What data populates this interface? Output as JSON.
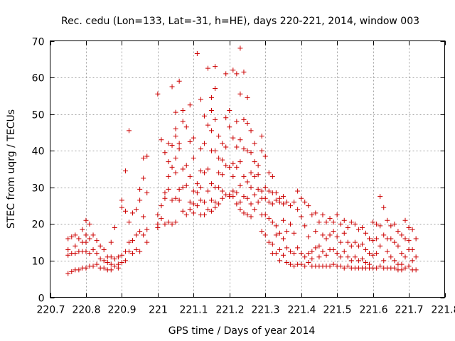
{
  "chart_data": {
    "type": "scatter",
    "title": "Rec. cedu (Lon=133, Lat=-31, h=HE), days 220-221, 2014, window 003",
    "xlabel": "GPS time / Days of year 2014",
    "ylabel": "STEC from uqrg / TECUs",
    "xlim": [
      220.7,
      221.8
    ],
    "ylim": [
      0,
      70
    ],
    "xticks": [
      220.7,
      220.8,
      220.9,
      221.0,
      221.1,
      221.2,
      221.3,
      221.4,
      221.5,
      221.6,
      221.7,
      221.8
    ],
    "xtick_labels": [
      "220.7",
      "220.8",
      "220.9",
      "221",
      "221.1",
      "221.2",
      "221.3",
      "221.4",
      "221.5",
      "221.6",
      "221.7",
      "221.8"
    ],
    "yticks": [
      0,
      10,
      20,
      30,
      40,
      50,
      60,
      70
    ],
    "ytick_labels": [
      "0",
      "10",
      "20",
      "30",
      "40",
      "50",
      "60",
      "70"
    ],
    "grid": true,
    "marker": "+",
    "color": "#cc0000",
    "points": [
      [
        220.75,
        16
      ],
      [
        220.75,
        13
      ],
      [
        220.75,
        11.5
      ],
      [
        220.75,
        6.5
      ],
      [
        220.76,
        16.5
      ],
      [
        220.76,
        12
      ],
      [
        220.76,
        7
      ],
      [
        220.77,
        17
      ],
      [
        220.77,
        14
      ],
      [
        220.77,
        12
      ],
      [
        220.77,
        7.5
      ],
      [
        220.78,
        16
      ],
      [
        220.78,
        12.5
      ],
      [
        220.78,
        7.5
      ],
      [
        220.79,
        18.5
      ],
      [
        220.79,
        15
      ],
      [
        220.79,
        12.5
      ],
      [
        220.79,
        8
      ],
      [
        220.8,
        21
      ],
      [
        220.8,
        17
      ],
      [
        220.8,
        15
      ],
      [
        220.8,
        12.5
      ],
      [
        220.8,
        8
      ],
      [
        220.81,
        20
      ],
      [
        220.81,
        16
      ],
      [
        220.81,
        12
      ],
      [
        220.81,
        8.5
      ],
      [
        220.82,
        17
      ],
      [
        220.82,
        13
      ],
      [
        220.82,
        8.5
      ],
      [
        220.83,
        15.5
      ],
      [
        220.83,
        12
      ],
      [
        220.83,
        9
      ],
      [
        220.84,
        14
      ],
      [
        220.84,
        10.5
      ],
      [
        220.84,
        8
      ],
      [
        220.85,
        13
      ],
      [
        220.85,
        10
      ],
      [
        220.85,
        8
      ],
      [
        220.86,
        11
      ],
      [
        220.86,
        9.5
      ],
      [
        220.86,
        7.5
      ],
      [
        220.87,
        15
      ],
      [
        220.87,
        11
      ],
      [
        220.87,
        9
      ],
      [
        220.87,
        7.5
      ],
      [
        220.88,
        19
      ],
      [
        220.88,
        10.5
      ],
      [
        220.88,
        8.5
      ],
      [
        220.89,
        11
      ],
      [
        220.89,
        9
      ],
      [
        220.89,
        8
      ],
      [
        220.9,
        24.5
      ],
      [
        220.9,
        26.5
      ],
      [
        220.9,
        11.5
      ],
      [
        220.9,
        9.5
      ],
      [
        220.91,
        34.5
      ],
      [
        220.91,
        23.5
      ],
      [
        220.91,
        12.5
      ],
      [
        220.91,
        10
      ],
      [
        220.92,
        45.5
      ],
      [
        220.92,
        20.5
      ],
      [
        220.92,
        15
      ],
      [
        220.92,
        12.5
      ],
      [
        220.93,
        23
      ],
      [
        220.93,
        15.5
      ],
      [
        220.93,
        12
      ],
      [
        220.94,
        24
      ],
      [
        220.94,
        17
      ],
      [
        220.94,
        13
      ],
      [
        220.95,
        29.5
      ],
      [
        220.95,
        26.5
      ],
      [
        220.95,
        18
      ],
      [
        220.95,
        12.5
      ],
      [
        220.96,
        38
      ],
      [
        220.96,
        32.5
      ],
      [
        220.96,
        22
      ],
      [
        220.96,
        17
      ],
      [
        220.97,
        38.5
      ],
      [
        220.97,
        28.5
      ],
      [
        220.97,
        18.5
      ],
      [
        220.97,
        15
      ],
      [
        221.0,
        55.5
      ],
      [
        221.0,
        22.5
      ],
      [
        221.0,
        20
      ],
      [
        221.0,
        19
      ],
      [
        221.01,
        43
      ],
      [
        221.01,
        25
      ],
      [
        221.01,
        21.5
      ],
      [
        221.02,
        39.5
      ],
      [
        221.02,
        28.5
      ],
      [
        221.02,
        27
      ],
      [
        221.02,
        20
      ],
      [
        221.03,
        42
      ],
      [
        221.03,
        37
      ],
      [
        221.03,
        33
      ],
      [
        221.03,
        29.5
      ],
      [
        221.03,
        20.5
      ],
      [
        221.04,
        57.5
      ],
      [
        221.04,
        41.5
      ],
      [
        221.04,
        35.5
      ],
      [
        221.04,
        26.5
      ],
      [
        221.04,
        20
      ],
      [
        221.05,
        50.5
      ],
      [
        221.05,
        46
      ],
      [
        221.05,
        44
      ],
      [
        221.05,
        38
      ],
      [
        221.05,
        34
      ],
      [
        221.05,
        27
      ],
      [
        221.05,
        20.5
      ],
      [
        221.06,
        59
      ],
      [
        221.06,
        42
      ],
      [
        221.06,
        40.5
      ],
      [
        221.06,
        29.5
      ],
      [
        221.06,
        26.5
      ],
      [
        221.07,
        51
      ],
      [
        221.07,
        48
      ],
      [
        221.07,
        35
      ],
      [
        221.07,
        30
      ],
      [
        221.07,
        23.5
      ],
      [
        221.08,
        46.5
      ],
      [
        221.08,
        36
      ],
      [
        221.08,
        30.5
      ],
      [
        221.08,
        22.5
      ],
      [
        221.09,
        52.5
      ],
      [
        221.09,
        42.5
      ],
      [
        221.09,
        33
      ],
      [
        221.09,
        26
      ],
      [
        221.09,
        24
      ],
      [
        221.1,
        43.5
      ],
      [
        221.1,
        38
      ],
      [
        221.1,
        29
      ],
      [
        221.1,
        25.5
      ],
      [
        221.1,
        23
      ],
      [
        221.11,
        66.5
      ],
      [
        221.11,
        31
      ],
      [
        221.11,
        28.5
      ],
      [
        221.11,
        25
      ],
      [
        221.12,
        54
      ],
      [
        221.12,
        40.5
      ],
      [
        221.12,
        34.5
      ],
      [
        221.12,
        30
      ],
      [
        221.12,
        26.5
      ],
      [
        221.12,
        22.5
      ],
      [
        221.13,
        49.5
      ],
      [
        221.13,
        42
      ],
      [
        221.13,
        34
      ],
      [
        221.13,
        26
      ],
      [
        221.13,
        22.5
      ],
      [
        221.14,
        62.5
      ],
      [
        221.14,
        47
      ],
      [
        221.14,
        35
      ],
      [
        221.14,
        29
      ],
      [
        221.14,
        24
      ],
      [
        221.15,
        54.5
      ],
      [
        221.15,
        51
      ],
      [
        221.15,
        45.5
      ],
      [
        221.15,
        40
      ],
      [
        221.15,
        31
      ],
      [
        221.15,
        26.5
      ],
      [
        221.15,
        23.5
      ],
      [
        221.16,
        63
      ],
      [
        221.16,
        57
      ],
      [
        221.16,
        48.5
      ],
      [
        221.16,
        40
      ],
      [
        221.16,
        30
      ],
      [
        221.16,
        26
      ],
      [
        221.16,
        24.5
      ],
      [
        221.17,
        44
      ],
      [
        221.17,
        38
      ],
      [
        221.17,
        34
      ],
      [
        221.17,
        30
      ],
      [
        221.17,
        25.5
      ],
      [
        221.18,
        42
      ],
      [
        221.18,
        37.5
      ],
      [
        221.18,
        33.5
      ],
      [
        221.18,
        29
      ],
      [
        221.18,
        27
      ],
      [
        221.19,
        61
      ],
      [
        221.19,
        49
      ],
      [
        221.19,
        41
      ],
      [
        221.19,
        36
      ],
      [
        221.19,
        28
      ],
      [
        221.2,
        51
      ],
      [
        221.2,
        46.5
      ],
      [
        221.2,
        35.5
      ],
      [
        221.2,
        28
      ],
      [
        221.2,
        27.5
      ],
      [
        221.21,
        62
      ],
      [
        221.21,
        43.5
      ],
      [
        221.21,
        36.5
      ],
      [
        221.21,
        33
      ],
      [
        221.21,
        29
      ],
      [
        221.21,
        27.5
      ],
      [
        221.22,
        61
      ],
      [
        221.22,
        48
      ],
      [
        221.22,
        41
      ],
      [
        221.22,
        35.5
      ],
      [
        221.22,
        28.5
      ],
      [
        221.22,
        25.5
      ],
      [
        221.23,
        68
      ],
      [
        221.23,
        55.5
      ],
      [
        221.23,
        43
      ],
      [
        221.23,
        37
      ],
      [
        221.23,
        30.5
      ],
      [
        221.23,
        26
      ],
      [
        221.23,
        24
      ],
      [
        221.24,
        61.5
      ],
      [
        221.24,
        48.5
      ],
      [
        221.24,
        40.5
      ],
      [
        221.24,
        33
      ],
      [
        221.24,
        27.5
      ],
      [
        221.24,
        23
      ],
      [
        221.25,
        54.5
      ],
      [
        221.25,
        47.5
      ],
      [
        221.25,
        40
      ],
      [
        221.25,
        31.5
      ],
      [
        221.25,
        27
      ],
      [
        221.25,
        22.5
      ],
      [
        221.26,
        45.5
      ],
      [
        221.26,
        39.5
      ],
      [
        221.26,
        34
      ],
      [
        221.26,
        30
      ],
      [
        221.26,
        25.5
      ],
      [
        221.26,
        22
      ],
      [
        221.27,
        42
      ],
      [
        221.27,
        37
      ],
      [
        221.27,
        33
      ],
      [
        221.27,
        28
      ],
      [
        221.27,
        24
      ],
      [
        221.28,
        36
      ],
      [
        221.28,
        33.5
      ],
      [
        221.28,
        29.5
      ],
      [
        221.28,
        26
      ],
      [
        221.29,
        44
      ],
      [
        221.29,
        40
      ],
      [
        221.29,
        29
      ],
      [
        221.29,
        27
      ],
      [
        221.29,
        22.5
      ],
      [
        221.29,
        18
      ],
      [
        221.3,
        38.5
      ],
      [
        221.3,
        30
      ],
      [
        221.3,
        27
      ],
      [
        221.3,
        22.5
      ],
      [
        221.3,
        17
      ],
      [
        221.31,
        34
      ],
      [
        221.31,
        29
      ],
      [
        221.31,
        26
      ],
      [
        221.31,
        21.5
      ],
      [
        221.31,
        15
      ],
      [
        221.32,
        33
      ],
      [
        221.32,
        28.5
      ],
      [
        221.32,
        25.5
      ],
      [
        221.32,
        20.5
      ],
      [
        221.32,
        14.5
      ],
      [
        221.32,
        12
      ],
      [
        221.33,
        28.5
      ],
      [
        221.33,
        26.5
      ],
      [
        221.33,
        19.5
      ],
      [
        221.33,
        17
      ],
      [
        221.33,
        12
      ],
      [
        221.34,
        27
      ],
      [
        221.34,
        26
      ],
      [
        221.34,
        17.5
      ],
      [
        221.34,
        13
      ],
      [
        221.34,
        10
      ],
      [
        221.35,
        27.5
      ],
      [
        221.35,
        25.5
      ],
      [
        221.35,
        21
      ],
      [
        221.35,
        16
      ],
      [
        221.35,
        11.5
      ],
      [
        221.36,
        26
      ],
      [
        221.36,
        18
      ],
      [
        221.36,
        13.5
      ],
      [
        221.36,
        9.5
      ],
      [
        221.37,
        25
      ],
      [
        221.37,
        20
      ],
      [
        221.37,
        12.5
      ],
      [
        221.37,
        9
      ],
      [
        221.38,
        26
      ],
      [
        221.38,
        17.5
      ],
      [
        221.38,
        12
      ],
      [
        221.38,
        8.5
      ],
      [
        221.39,
        29
      ],
      [
        221.39,
        24
      ],
      [
        221.39,
        13.5
      ],
      [
        221.39,
        9
      ],
      [
        221.4,
        27
      ],
      [
        221.4,
        22
      ],
      [
        221.4,
        12
      ],
      [
        221.4,
        9
      ],
      [
        221.41,
        26
      ],
      [
        221.41,
        19.5
      ],
      [
        221.41,
        11
      ],
      [
        221.41,
        8.5
      ],
      [
        221.42,
        25
      ],
      [
        221.42,
        16.5
      ],
      [
        221.42,
        12
      ],
      [
        221.42,
        9.5
      ],
      [
        221.43,
        22.5
      ],
      [
        221.43,
        12.5
      ],
      [
        221.43,
        10.5
      ],
      [
        221.43,
        8.5
      ],
      [
        221.44,
        23
      ],
      [
        221.44,
        18
      ],
      [
        221.44,
        13.5
      ],
      [
        221.44,
        8.5
      ],
      [
        221.45,
        20.5
      ],
      [
        221.45,
        14
      ],
      [
        221.45,
        11
      ],
      [
        221.45,
        8.5
      ],
      [
        221.46,
        22.5
      ],
      [
        221.46,
        17
      ],
      [
        221.46,
        12.5
      ],
      [
        221.46,
        8.5
      ],
      [
        221.47,
        20.5
      ],
      [
        221.47,
        16
      ],
      [
        221.47,
        11.5
      ],
      [
        221.47,
        8.5
      ],
      [
        221.48,
        21.5
      ],
      [
        221.48,
        17
      ],
      [
        221.48,
        13
      ],
      [
        221.48,
        8.5
      ],
      [
        221.49,
        20.5
      ],
      [
        221.49,
        18
      ],
      [
        221.49,
        13
      ],
      [
        221.49,
        9
      ],
      [
        221.5,
        22.5
      ],
      [
        221.5,
        16.5
      ],
      [
        221.5,
        12
      ],
      [
        221.5,
        8.5
      ],
      [
        221.51,
        20
      ],
      [
        221.51,
        15
      ],
      [
        221.51,
        11
      ],
      [
        221.51,
        8.5
      ],
      [
        221.52,
        21
      ],
      [
        221.52,
        17.5
      ],
      [
        221.52,
        12.5
      ],
      [
        221.52,
        8
      ],
      [
        221.53,
        19
      ],
      [
        221.53,
        15
      ],
      [
        221.53,
        11
      ],
      [
        221.53,
        8.5
      ],
      [
        221.54,
        20.5
      ],
      [
        221.54,
        14
      ],
      [
        221.54,
        10
      ],
      [
        221.54,
        8
      ],
      [
        221.55,
        20
      ],
      [
        221.55,
        15
      ],
      [
        221.55,
        11
      ],
      [
        221.55,
        8
      ],
      [
        221.56,
        18.5
      ],
      [
        221.56,
        14
      ],
      [
        221.56,
        10
      ],
      [
        221.56,
        8
      ],
      [
        221.57,
        19
      ],
      [
        221.57,
        14.5
      ],
      [
        221.57,
        10.5
      ],
      [
        221.57,
        8
      ],
      [
        221.58,
        17.5
      ],
      [
        221.58,
        13
      ],
      [
        221.58,
        9.5
      ],
      [
        221.58,
        8
      ],
      [
        221.59,
        16
      ],
      [
        221.59,
        12
      ],
      [
        221.59,
        9
      ],
      [
        221.59,
        8
      ],
      [
        221.6,
        20.5
      ],
      [
        221.6,
        15.5
      ],
      [
        221.6,
        11.5
      ],
      [
        221.6,
        8
      ],
      [
        221.61,
        20
      ],
      [
        221.61,
        16
      ],
      [
        221.61,
        12
      ],
      [
        221.61,
        8
      ],
      [
        221.62,
        27.5
      ],
      [
        221.62,
        19.5
      ],
      [
        221.62,
        14
      ],
      [
        221.62,
        8.5
      ],
      [
        221.63,
        24.5
      ],
      [
        221.63,
        17
      ],
      [
        221.63,
        10
      ],
      [
        221.63,
        8
      ],
      [
        221.64,
        21
      ],
      [
        221.64,
        16
      ],
      [
        221.64,
        12.5
      ],
      [
        221.64,
        8
      ],
      [
        221.65,
        19.5
      ],
      [
        221.65,
        16
      ],
      [
        221.65,
        11
      ],
      [
        221.65,
        8
      ],
      [
        221.66,
        20
      ],
      [
        221.66,
        15
      ],
      [
        221.66,
        10
      ],
      [
        221.66,
        8
      ],
      [
        221.67,
        18
      ],
      [
        221.67,
        14
      ],
      [
        221.67,
        9
      ],
      [
        221.67,
        7.5
      ],
      [
        221.68,
        17
      ],
      [
        221.68,
        12
      ],
      [
        221.68,
        9
      ],
      [
        221.68,
        7.5
      ],
      [
        221.69,
        21
      ],
      [
        221.69,
        16
      ],
      [
        221.69,
        11
      ],
      [
        221.69,
        8
      ],
      [
        221.7,
        19
      ],
      [
        221.7,
        15.5
      ],
      [
        221.7,
        13
      ],
      [
        221.7,
        8.5
      ],
      [
        221.71,
        18.5
      ],
      [
        221.71,
        13
      ],
      [
        221.71,
        10
      ],
      [
        221.71,
        7.5
      ],
      [
        221.72,
        16
      ],
      [
        221.72,
        11
      ],
      [
        221.72,
        7.5
      ]
    ]
  }
}
